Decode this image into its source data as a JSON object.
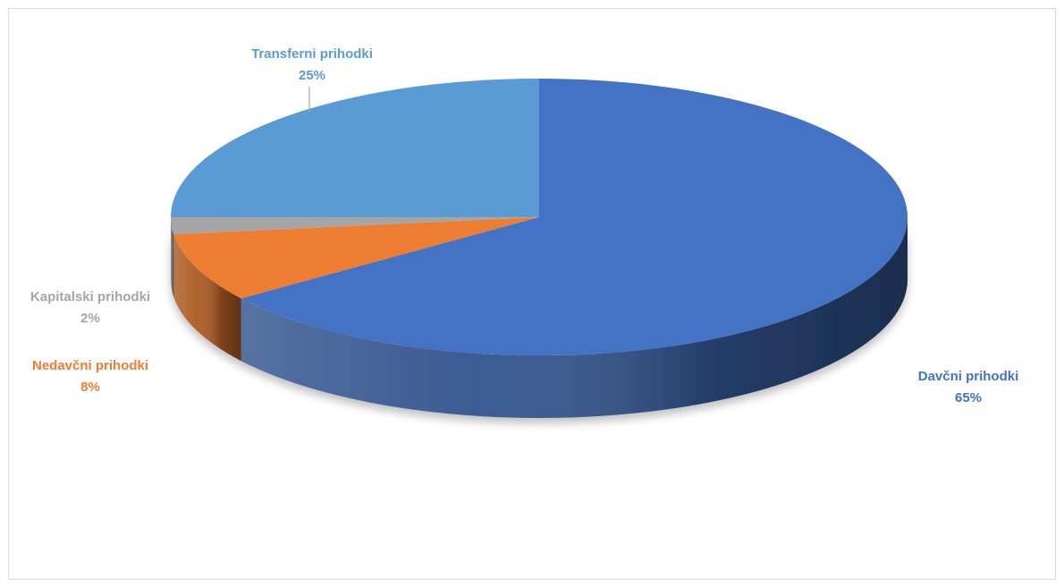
{
  "chart_data": {
    "type": "pie",
    "style": "3d",
    "title": "",
    "legend": "none",
    "slices": [
      {
        "label": "Davčni prihodki",
        "value": 65,
        "value_label": "65%",
        "color": "#4472c4"
      },
      {
        "label": "Nedavčni prihodki",
        "value": 8,
        "value_label": "8%",
        "color": "#ed7d31"
      },
      {
        "label": "Kapitalski prihodki",
        "value": 2,
        "value_label": "2%",
        "color": "#a5a5a5"
      },
      {
        "label": "Transferni prihodki",
        "value": 25,
        "value_label": "25%",
        "color": "#5b9bd5"
      }
    ]
  }
}
